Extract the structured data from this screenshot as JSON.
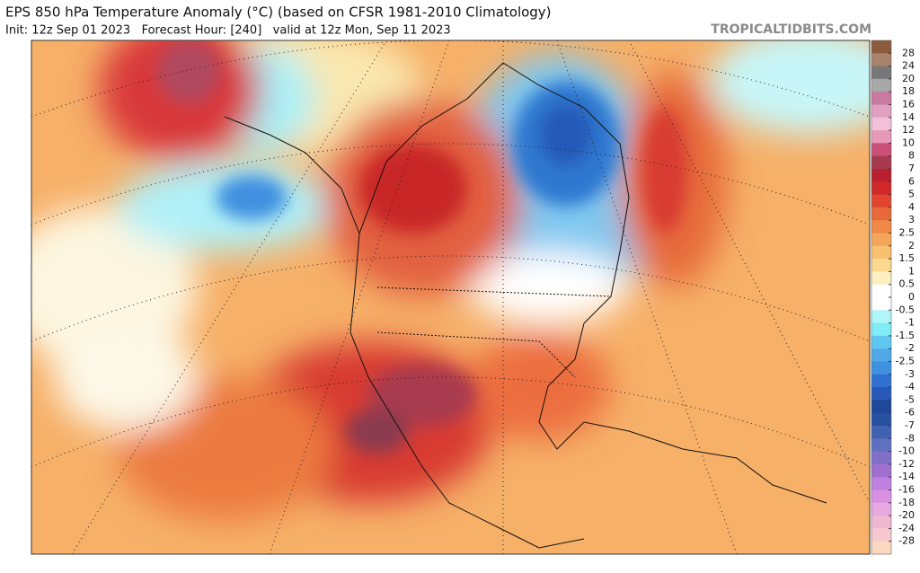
{
  "header": {
    "title": "EPS 850 hPa Temperature Anomaly (°C) (based on CFSR 1981-2010 Climatology)",
    "subtitle": "Init: 12z Sep 01 2023   Forecast Hour: [240]   valid at 12z Mon, Sep 11 2023",
    "site": "TROPICALTIDBITS.COM"
  },
  "colorbar": {
    "labels": [
      "28",
      "24",
      "20",
      "18",
      "16",
      "14",
      "12",
      "10",
      "8",
      "7",
      "6",
      "5",
      "4",
      "3",
      "2.5",
      "2",
      "1.5",
      "1",
      "0.5",
      "0",
      "-0.5",
      "-1",
      "-1.5",
      "-2",
      "-2.5",
      "-3",
      "-4",
      "-5",
      "-6",
      "-7",
      "-8",
      "-10",
      "-12",
      "-14",
      "-16",
      "-18",
      "-20",
      "-24",
      "-28"
    ],
    "colors": [
      "#8c5b3d",
      "#a8826b",
      "#777777",
      "#a8a8a8",
      "#c97aa0",
      "#e0a0c0",
      "#f2c0d8",
      "#e898b8",
      "#c85078",
      "#a83a50",
      "#b82030",
      "#d02828",
      "#e04530",
      "#e86a3a",
      "#f08848",
      "#f5a55a",
      "#f8c070",
      "#fad890",
      "#fdf0c0",
      "#ffffff",
      "#ffffff",
      "#b0f5f8",
      "#80ecf5",
      "#60c8f0",
      "#50a8e8",
      "#4090e0",
      "#3070d0",
      "#2858b8",
      "#204898",
      "#2850a0",
      "#4060b0",
      "#6070c0",
      "#8070c8",
      "#a070d0",
      "#c080e0",
      "#d890e0",
      "#e8a8e0",
      "#f0b8d0",
      "#f8c8d0",
      "#fbd8c0"
    ]
  }
}
